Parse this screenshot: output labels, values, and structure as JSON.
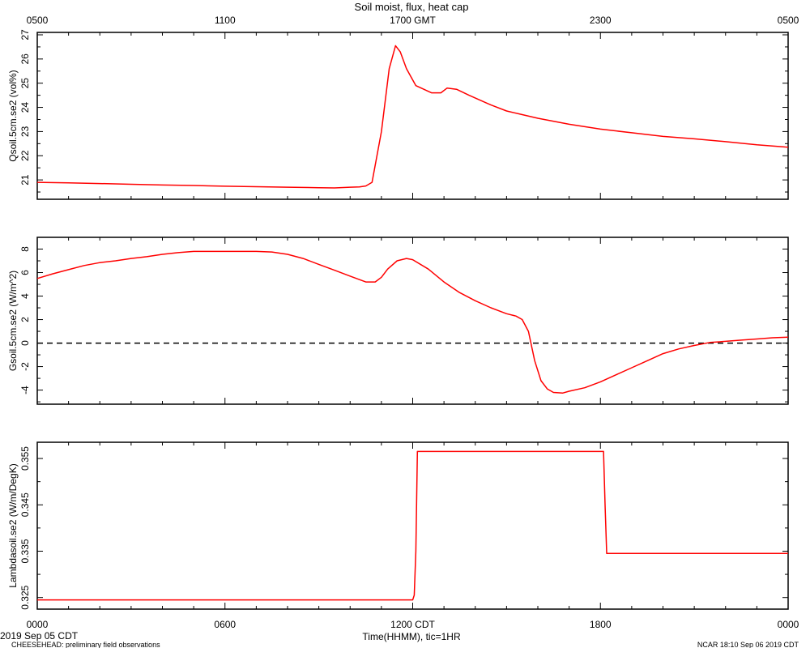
{
  "header": {
    "title": "Soil moist, flux, heat cap",
    "top_axis_ticks": [
      "0500",
      "1100",
      "1700 GMT",
      "2300",
      "0500"
    ]
  },
  "bottom_axis": {
    "ticks": [
      "0000",
      "0600",
      "1200 CDT",
      "1800",
      "0000"
    ],
    "label": "Time(HHMM), tic=1HR"
  },
  "footer": {
    "date": "2019 Sep 05 CDT",
    "left_note": "CHEESEHEAD: preliminary field observations",
    "right_note": "NCAR 18:10 Sep 06 2019 CDT"
  },
  "colors": {
    "series": "#ff0000",
    "axes": "#000000",
    "zero_line": "#000000"
  },
  "chart_data": [
    {
      "type": "line",
      "ylabel": "Qsoil.5cm.se2 (vol%)",
      "xlim": [
        0,
        24
      ],
      "ylim": [
        20.2,
        27.1
      ],
      "yticks": [
        21,
        22,
        23,
        24,
        25,
        26,
        27
      ],
      "yticklabels": [
        "21",
        "22",
        "23",
        "24",
        "25",
        "26",
        "27"
      ],
      "series": [
        {
          "x": [
            0,
            1,
            2,
            3,
            4,
            5,
            6,
            7,
            8,
            9,
            9.5,
            10,
            10.3,
            10.5,
            10.7,
            11,
            11.25,
            11.45,
            11.6,
            11.8,
            12.1,
            12.6,
            12.9,
            13.1,
            13.4,
            13.8,
            14.5,
            15,
            15.5,
            16,
            17,
            18,
            19,
            20,
            21,
            22,
            23,
            24
          ],
          "y": [
            20.9,
            20.88,
            20.85,
            20.82,
            20.79,
            20.77,
            20.74,
            20.72,
            20.7,
            20.68,
            20.67,
            20.7,
            20.71,
            20.75,
            20.9,
            23,
            25.6,
            26.55,
            26.3,
            25.6,
            24.9,
            24.6,
            24.6,
            24.8,
            24.75,
            24.5,
            24.1,
            23.85,
            23.7,
            23.55,
            23.3,
            23.1,
            22.95,
            22.8,
            22.7,
            22.58,
            22.45,
            22.35
          ]
        }
      ]
    },
    {
      "type": "line",
      "ylabel": "Gsoil.5cm.se2 (W/m^2)",
      "xlim": [
        0,
        24
      ],
      "ylim": [
        -5.2,
        9
      ],
      "yticks": [
        -4,
        -2,
        0,
        2,
        4,
        6,
        8
      ],
      "yticklabels": [
        "-4",
        "-2",
        "0",
        "2",
        "4",
        "6",
        "8"
      ],
      "reference_line": {
        "y": 0,
        "style": "dashed"
      },
      "series": [
        {
          "x": [
            0,
            0.5,
            1,
            1.5,
            2,
            2.5,
            3,
            3.5,
            4,
            4.5,
            5,
            6,
            7,
            7.5,
            8,
            8.5,
            9,
            9.5,
            10,
            10.3,
            10.5,
            10.8,
            11,
            11.2,
            11.5,
            11.8,
            12,
            12.5,
            13,
            13.5,
            14,
            14.5,
            15,
            15.3,
            15.5,
            15.7,
            15.9,
            16.1,
            16.3,
            16.5,
            16.8,
            17,
            17.5,
            18,
            18.5,
            19,
            19.5,
            20,
            20.5,
            21,
            21.5,
            22,
            22.5,
            23,
            23.5,
            24
          ],
          "y": [
            5.5,
            5.9,
            6.25,
            6.6,
            6.85,
            7.0,
            7.2,
            7.35,
            7.55,
            7.7,
            7.8,
            7.8,
            7.8,
            7.75,
            7.55,
            7.2,
            6.7,
            6.2,
            5.7,
            5.4,
            5.2,
            5.2,
            5.6,
            6.3,
            7.0,
            7.2,
            7.1,
            6.3,
            5.2,
            4.3,
            3.6,
            3.0,
            2.5,
            2.3,
            2.0,
            1.0,
            -1.5,
            -3.2,
            -3.9,
            -4.2,
            -4.25,
            -4.1,
            -3.8,
            -3.3,
            -2.7,
            -2.1,
            -1.5,
            -0.9,
            -0.5,
            -0.2,
            0.05,
            0.15,
            0.25,
            0.35,
            0.45,
            0.5
          ]
        }
      ]
    },
    {
      "type": "line",
      "ylabel": "Lambdasoil.se2 (W/m/DegK)",
      "xlim": [
        0,
        24
      ],
      "ylim": [
        0.3225,
        0.3585
      ],
      "yticks": [
        0.325,
        0.335,
        0.345,
        0.355
      ],
      "yticklabels": [
        "0.325",
        "0.335",
        "0.345",
        "0.355"
      ],
      "series": [
        {
          "x": [
            0,
            12,
            12.05,
            12.1,
            12.15,
            18,
            18.1,
            18.15,
            18.2,
            24
          ],
          "y": [
            0.3245,
            0.3245,
            0.3255,
            0.335,
            0.3565,
            0.3565,
            0.3565,
            0.345,
            0.3345,
            0.3345
          ]
        }
      ]
    }
  ]
}
